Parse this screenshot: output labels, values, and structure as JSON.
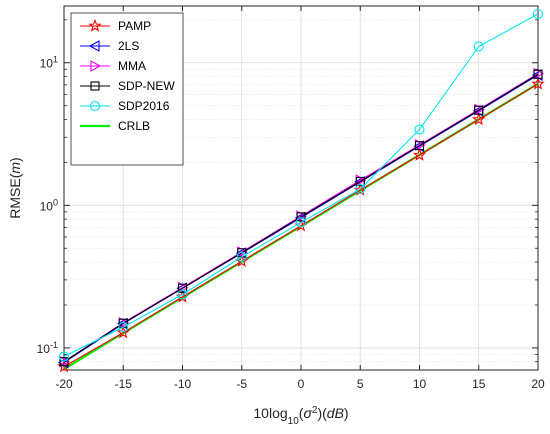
{
  "chart_data": {
    "type": "line",
    "x": [
      -20,
      -15,
      -10,
      -5,
      0,
      5,
      10,
      15,
      20
    ],
    "x_ticks": [
      "-20",
      "-15",
      "-10",
      "-5",
      "0",
      "5",
      "10",
      "15",
      "20"
    ],
    "xlim": [
      -20,
      20
    ],
    "ylim": [
      0.07,
      25
    ],
    "yscale": "log",
    "grid": true,
    "legend_position": "top-left",
    "xlabel": {
      "base": "10log",
      "sub": "10",
      "paren_open": "(",
      "sigma": "σ",
      "sup": "2",
      "mid": ")(",
      "unit": "dB",
      "paren_close": ")"
    },
    "ylabel": {
      "base": "RMSE(",
      "unit": "m",
      "close": ")"
    },
    "y_ticks": [
      {
        "value": 0.1,
        "base": "10",
        "exp": "-1"
      },
      {
        "value": 1,
        "base": "10",
        "exp": "0"
      },
      {
        "value": 10,
        "base": "10",
        "exp": "1"
      }
    ],
    "series": [
      {
        "name": "PAMP",
        "color": "#ff0000",
        "marker": "star",
        "values": [
          0.074,
          0.128,
          0.228,
          0.405,
          0.72,
          1.28,
          2.25,
          4.0,
          7.1
        ]
      },
      {
        "name": "2LS",
        "color": "#0000ff",
        "marker": "triangle-left",
        "values": [
          0.079,
          0.148,
          0.262,
          0.462,
          0.82,
          1.46,
          2.6,
          4.6,
          8.2
        ]
      },
      {
        "name": "MMA",
        "color": "#ff00ff",
        "marker": "triangle-right",
        "values": [
          0.08,
          0.15,
          0.265,
          0.47,
          0.84,
          1.5,
          2.65,
          4.7,
          8.4
        ]
      },
      {
        "name": "SDP-NEW",
        "color": "#000000",
        "marker": "square",
        "values": [
          0.08,
          0.149,
          0.262,
          0.465,
          0.83,
          1.47,
          2.62,
          4.65,
          8.3
        ]
      },
      {
        "name": "SDP2016",
        "color": "#00e5ee",
        "marker": "circle",
        "values": [
          0.087,
          0.14,
          0.237,
          0.435,
          0.76,
          1.3,
          3.4,
          13.0,
          22.0
        ]
      },
      {
        "name": "CRLB",
        "color": "#00ee00",
        "marker": "none",
        "values": [
          0.071,
          0.127,
          0.226,
          0.402,
          0.713,
          1.27,
          2.26,
          4.01,
          7.13
        ]
      }
    ]
  }
}
